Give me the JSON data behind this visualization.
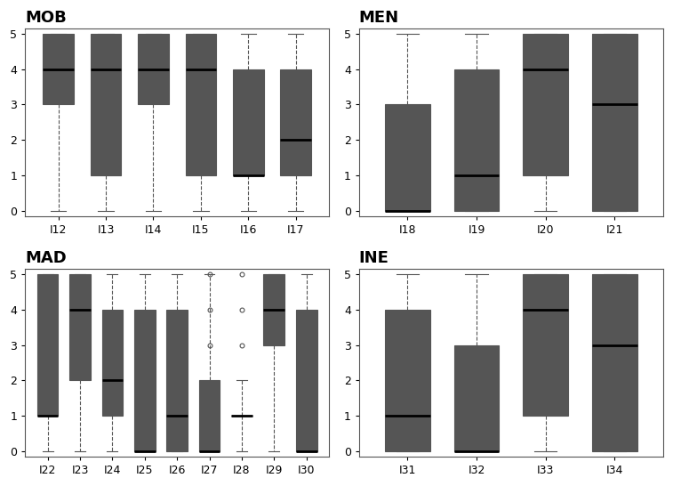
{
  "MOB": {
    "title": "MOB",
    "items": [
      "I12",
      "I13",
      "I14",
      "I15",
      "I16",
      "I17"
    ],
    "boxes": [
      {
        "whislo": 0,
        "q1": 3,
        "med": 4,
        "q3": 5,
        "whishi": 5,
        "fliers": []
      },
      {
        "whislo": 0,
        "q1": 1,
        "med": 4,
        "q3": 5,
        "whishi": 5,
        "fliers": []
      },
      {
        "whislo": 0,
        "q1": 3,
        "med": 4,
        "q3": 5,
        "whishi": 5,
        "fliers": []
      },
      {
        "whislo": 0,
        "q1": 1,
        "med": 4,
        "q3": 5,
        "whishi": 5,
        "fliers": []
      },
      {
        "whislo": 0,
        "q1": 1,
        "med": 1,
        "q3": 4,
        "whishi": 5,
        "fliers": []
      },
      {
        "whislo": 0,
        "q1": 1,
        "med": 2,
        "q3": 4,
        "whishi": 5,
        "fliers": []
      }
    ]
  },
  "MEN": {
    "title": "MEN",
    "items": [
      "I18",
      "I19",
      "I20",
      "I21"
    ],
    "boxes": [
      {
        "whislo": 0,
        "q1": 0,
        "med": 0,
        "q3": 3,
        "whishi": 5,
        "fliers": []
      },
      {
        "whislo": 0,
        "q1": 0,
        "med": 1,
        "q3": 4,
        "whishi": 5,
        "fliers": []
      },
      {
        "whislo": 0,
        "q1": 1,
        "med": 4,
        "q3": 5,
        "whishi": 5,
        "fliers": []
      },
      {
        "whislo": 0,
        "q1": 0,
        "med": 3,
        "q3": 5,
        "whishi": 5,
        "fliers": []
      }
    ]
  },
  "MAD": {
    "title": "MAD",
    "items": [
      "I22",
      "I23",
      "I24",
      "I25",
      "I26",
      "I27",
      "I28",
      "I29",
      "I30"
    ],
    "boxes": [
      {
        "whislo": 0,
        "q1": 1,
        "med": 1,
        "q3": 5,
        "whishi": 5,
        "fliers": []
      },
      {
        "whislo": 0,
        "q1": 2,
        "med": 4,
        "q3": 5,
        "whishi": 5,
        "fliers": []
      },
      {
        "whislo": 0,
        "q1": 1,
        "med": 2,
        "q3": 4,
        "whishi": 5,
        "fliers": []
      },
      {
        "whislo": 0,
        "q1": 0,
        "med": 0,
        "q3": 4,
        "whishi": 5,
        "fliers": []
      },
      {
        "whislo": 0,
        "q1": 0,
        "med": 1,
        "q3": 4,
        "whishi": 5,
        "fliers": []
      },
      {
        "whislo": 0,
        "q1": 0,
        "med": 0,
        "q3": 2,
        "whishi": 5,
        "fliers": [
          3,
          4,
          5
        ]
      },
      {
        "whislo": 0,
        "q1": 1,
        "med": 1,
        "q3": 1,
        "whishi": 2,
        "fliers": [
          3,
          4,
          5
        ]
      },
      {
        "whislo": 0,
        "q1": 3,
        "med": 4,
        "q3": 5,
        "whishi": 5,
        "fliers": []
      },
      {
        "whislo": 0,
        "q1": 0,
        "med": 0,
        "q3": 4,
        "whishi": 5,
        "fliers": []
      }
    ]
  },
  "INE": {
    "title": "INE",
    "items": [
      "I31",
      "I32",
      "I33",
      "I34"
    ],
    "boxes": [
      {
        "whislo": 0,
        "q1": 0,
        "med": 1,
        "q3": 4,
        "whishi": 5,
        "fliers": []
      },
      {
        "whislo": 0,
        "q1": 0,
        "med": 0,
        "q3": 3,
        "whishi": 5,
        "fliers": []
      },
      {
        "whislo": 0,
        "q1": 1,
        "med": 4,
        "q3": 5,
        "whishi": 5,
        "fliers": []
      },
      {
        "whislo": 0,
        "q1": 0,
        "med": 3,
        "q3": 5,
        "whishi": 5,
        "fliers": []
      }
    ]
  },
  "box_facecolor": "#c8c8c8",
  "box_edgecolor": "#555555",
  "median_color": "#000000",
  "whisker_color": "#555555",
  "cap_color": "#555555",
  "flier_color": "#555555",
  "ylim": [
    -0.15,
    5.15
  ],
  "yticks": [
    0,
    1,
    2,
    3,
    4,
    5
  ],
  "title_fontsize": 13,
  "tick_fontsize": 9,
  "figsize": [
    7.57,
    5.46
  ],
  "dpi": 100
}
